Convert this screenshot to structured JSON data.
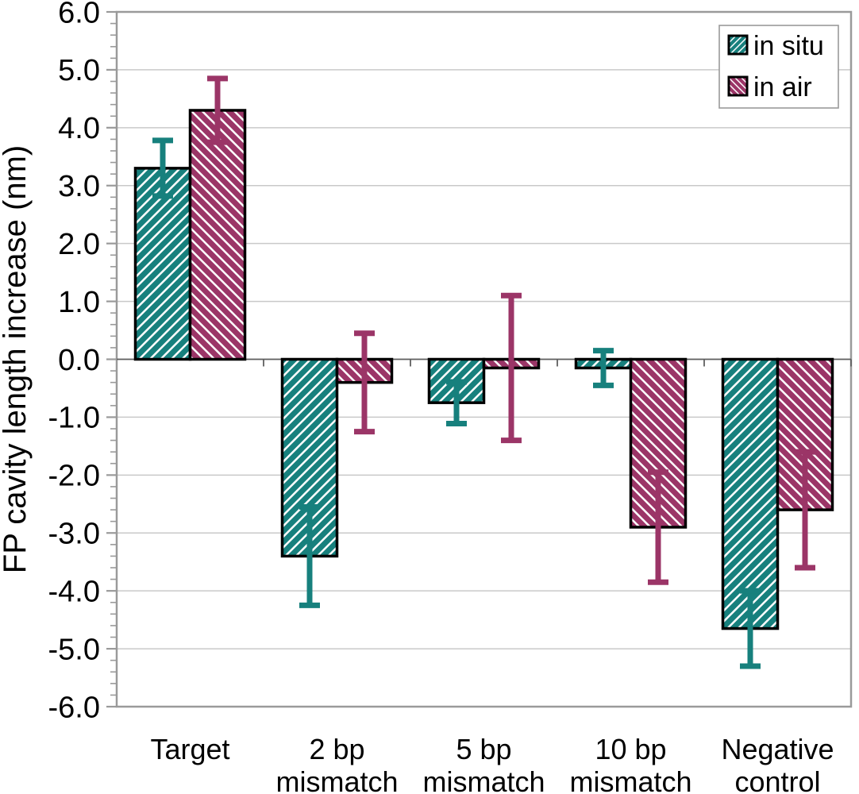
{
  "figure": {
    "background": "#ffffff"
  },
  "chart_data": {
    "type": "bar",
    "title": "",
    "xlabel": "",
    "ylabel": "FP cavity length increase (nm)",
    "ylim": [
      -6.0,
      6.0
    ],
    "ytick_step": 1.0,
    "ytick_minor_step": 0.2,
    "ytick_decimals": 1,
    "grid": "horizontal-major",
    "zero_baseline": true,
    "legend_position": "top-right",
    "categories": [
      "Target",
      "2 bp mismatch",
      "5 bp mismatch",
      "10 bp mismatch",
      "Negative control"
    ],
    "category_label_lines": [
      [
        "Target"
      ],
      [
        "2 bp",
        "mismatch"
      ],
      [
        "5 bp",
        "mismatch"
      ],
      [
        "10 bp",
        "mismatch"
      ],
      [
        "Negative",
        "control"
      ]
    ],
    "series": [
      {
        "name": "in situ",
        "color": "#17807d",
        "hatch": "forward-diagonal",
        "values": [
          3.3,
          -3.4,
          -0.75,
          -0.15,
          -4.65
        ],
        "errors": [
          0.48,
          0.85,
          0.36,
          0.3,
          0.65
        ]
      },
      {
        "name": "in air",
        "color": "#9b3567",
        "hatch": "backward-diagonal",
        "values": [
          4.3,
          -0.4,
          -0.15,
          -2.9,
          -2.6
        ],
        "errors": [
          0.55,
          0.85,
          1.25,
          0.95,
          1.0
        ]
      }
    ],
    "colors": {
      "gridline": "#c9c9c9",
      "axis": "#9a9a9a",
      "zero_line": "#5f5f5f",
      "bar_outline": "#000000",
      "legend_border": "#9a9a9a",
      "legend_background": "#ffffff",
      "text": "#000000"
    }
  }
}
